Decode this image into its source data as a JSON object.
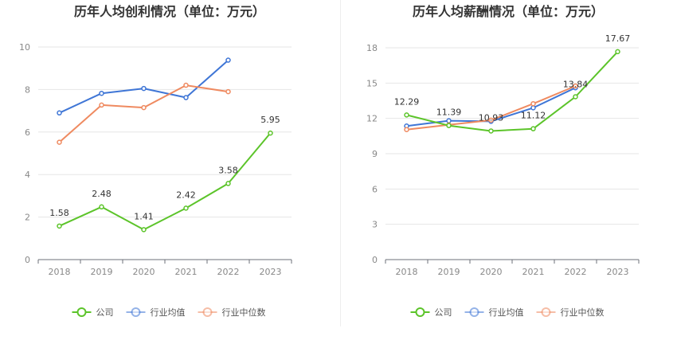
{
  "chart_data": [
    {
      "type": "line",
      "title": "历年人均创利情况（单位：万元）",
      "categories": [
        "2018",
        "2019",
        "2020",
        "2021",
        "2022",
        "2023"
      ],
      "ylim": [
        0,
        10
      ],
      "yticks": [
        0,
        2,
        4,
        6,
        8,
        10
      ],
      "grid": true,
      "legend_position": "bottom",
      "series": [
        {
          "name": "公司",
          "color": "#5cc42a",
          "values": [
            1.58,
            2.48,
            1.41,
            2.42,
            3.58,
            5.95
          ],
          "labels": [
            "1.58",
            "2.48",
            "1.41",
            "2.42",
            "3.58",
            "5.95"
          ],
          "show_labels": true
        },
        {
          "name": "行业均值",
          "color": "#3f76d6",
          "values": [
            6.9,
            7.82,
            8.05,
            7.62,
            9.38,
            null
          ],
          "show_labels": false
        },
        {
          "name": "行业中位数",
          "color": "#ef8a60",
          "values": [
            5.52,
            7.27,
            7.15,
            8.2,
            7.9,
            null
          ],
          "show_labels": false
        }
      ]
    },
    {
      "type": "line",
      "title": "历年人均薪酬情况（单位：万元）",
      "categories": [
        "2018",
        "2019",
        "2020",
        "2021",
        "2022",
        "2023"
      ],
      "ylim": [
        0,
        18
      ],
      "yticks": [
        0,
        3,
        6,
        9,
        12,
        15,
        18
      ],
      "grid": true,
      "legend_position": "bottom",
      "series": [
        {
          "name": "公司",
          "color": "#5cc42a",
          "values": [
            12.29,
            11.39,
            10.93,
            11.12,
            13.84,
            17.67
          ],
          "labels": [
            "12.29",
            "11.39",
            "10.93",
            "11.12",
            "13.84",
            "17.67"
          ],
          "show_labels": true
        },
        {
          "name": "行业均值",
          "color": "#3f76d6",
          "values": [
            11.35,
            11.8,
            11.75,
            12.9,
            14.6,
            null
          ],
          "show_labels": false
        },
        {
          "name": "行业中位数",
          "color": "#ef8a60",
          "values": [
            11.05,
            11.45,
            11.85,
            13.25,
            14.75,
            null
          ],
          "show_labels": false
        }
      ]
    }
  ]
}
